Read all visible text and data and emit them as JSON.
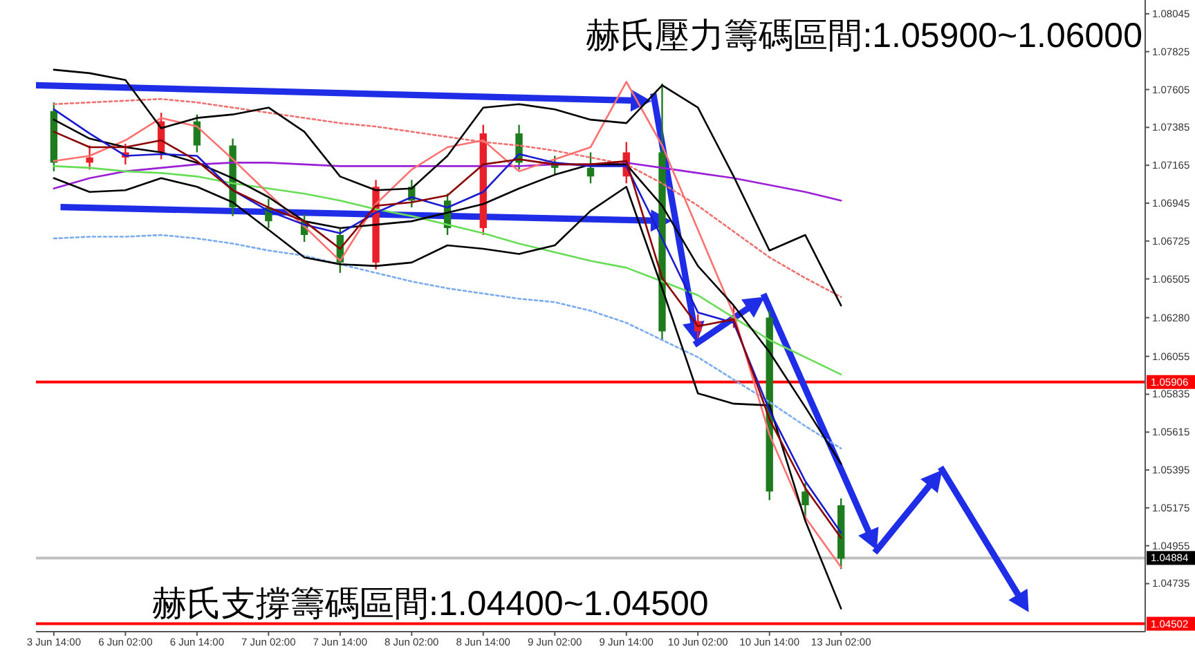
{
  "chart_data": {
    "type": "candlestick",
    "annotations": [
      "赫氏壓力籌碼區間:1.05900~1.06000",
      "赫氏支撐籌碼區間:1.04400~1.04500"
    ],
    "categories": [
      "3 Jun 14:00",
      null,
      "6 Jun 02:00",
      null,
      "6 Jun 14:00",
      null,
      "7 Jun 02:00",
      null,
      "7 Jun 14:00",
      null,
      "8 Jun 02:00",
      null,
      "8 Jun 14:00",
      null,
      "9 Jun 02:00",
      null,
      "9 Jun 14:00",
      null,
      "10 Jun 02:00",
      null,
      "10 Jun 14:00",
      null,
      "13 Jun 02:00",
      null,
      null,
      null,
      null,
      null,
      null,
      null,
      null
    ],
    "ohlc": [
      [
        1.0748,
        1.0753,
        1.0713,
        1.0718
      ],
      [
        1.0718,
        1.0728,
        1.0714,
        1.0721
      ],
      [
        1.0721,
        1.0729,
        1.0717,
        1.0724
      ],
      [
        1.0724,
        1.0747,
        1.072,
        1.0742
      ],
      [
        1.0742,
        1.0746,
        1.0724,
        1.0728
      ],
      [
        1.0728,
        1.0732,
        1.0687,
        1.0692
      ],
      [
        1.0692,
        1.0697,
        1.068,
        1.0684
      ],
      [
        1.0684,
        1.0688,
        1.0672,
        1.0676
      ],
      [
        1.0676,
        1.068,
        1.0654,
        1.066
      ],
      [
        1.066,
        1.0708,
        1.0656,
        1.0704
      ],
      [
        1.0704,
        1.0708,
        1.0692,
        1.0696
      ],
      [
        1.0696,
        1.07,
        1.0676,
        1.068
      ],
      [
        1.068,
        1.074,
        1.0676,
        1.0735
      ],
      [
        1.0735,
        1.074,
        1.0714,
        1.0718
      ],
      [
        1.0718,
        1.0722,
        1.0711,
        1.0715
      ],
      [
        1.0715,
        1.0724,
        1.0706,
        1.071
      ],
      [
        1.071,
        1.073,
        1.0706,
        1.0724
      ],
      [
        1.0724,
        1.0764,
        1.0615,
        1.062
      ],
      [
        1.062,
        1.063,
        1.0616,
        1.0626
      ],
      [
        1.0626,
        1.0635,
        1.0622,
        1.0628
      ],
      [
        1.0628,
        1.0632,
        1.0522,
        1.0527
      ],
      [
        1.0527,
        1.0532,
        1.0512,
        1.0519
      ],
      [
        1.0519,
        1.0523,
        1.0482,
        1.0488
      ],
      null,
      null,
      null,
      null,
      null,
      null,
      null,
      null
    ],
    "colors": [
      "#1e7b1e",
      "#e8202a",
      "#e8202a",
      "#e8202a",
      "#1e7b1e",
      "#1e7b1e",
      "#1e7b1e",
      "#1e7b1e",
      "#1e7b1e",
      "#e8202a",
      "#1e7b1e",
      "#1e7b1e",
      "#e8202a",
      "#1e7b1e",
      "#1e7b1e",
      "#1e7b1e",
      "#e8202a",
      "#1e7b1e",
      "#e8202a",
      "#e8202a",
      "#1e7b1e",
      "#1e7b1e",
      "#1e7b1e",
      null,
      null,
      null,
      null,
      null,
      null,
      null,
      null
    ],
    "series": [
      {
        "type": "line",
        "color": "#9b1fd6",
        "line_style": "solid",
        "values": [
          1.0703,
          1.0709,
          1.0713,
          1.0715,
          1.0717,
          1.0718,
          1.0718,
          1.0717,
          1.0716,
          1.0716,
          1.0716,
          1.0716,
          1.0716,
          1.0716,
          1.0717,
          1.0717,
          1.0718,
          1.0715,
          1.0712,
          1.0709,
          1.0705,
          1.0701,
          1.0696,
          null,
          null,
          null,
          null,
          null,
          null,
          null,
          null
        ]
      },
      {
        "type": "line",
        "color": "#66dd55",
        "line_style": "solid",
        "values": [
          1.0716,
          1.0715,
          1.0713,
          1.0712,
          1.071,
          1.0706,
          1.0703,
          1.07,
          1.0696,
          1.0691,
          1.0687,
          1.0682,
          1.0677,
          1.0671,
          1.0666,
          1.0661,
          1.0657,
          1.0649,
          1.0641,
          1.0628,
          1.0615,
          1.0605,
          1.0595,
          null,
          null,
          null,
          null,
          null,
          null,
          null,
          null
        ]
      },
      {
        "type": "line",
        "color": "#f07070",
        "line_style": "dotted",
        "values": [
          1.0752,
          1.0753,
          1.0754,
          1.0755,
          1.0753,
          1.075,
          1.0747,
          1.0744,
          1.0741,
          1.0739,
          1.0736,
          1.0733,
          1.073,
          1.0728,
          1.0725,
          1.0721,
          1.0717,
          1.0706,
          1.0693,
          1.0678,
          1.0663,
          1.0651,
          1.064,
          null,
          null,
          null,
          null,
          null,
          null,
          null,
          null
        ]
      },
      {
        "type": "line",
        "color": "#7aaaf0",
        "line_style": "dotted",
        "values": [
          1.0674,
          1.0675,
          1.0675,
          1.0676,
          1.0674,
          1.0671,
          1.0667,
          1.0664,
          1.0659,
          1.0654,
          1.0649,
          1.0645,
          1.0642,
          1.0639,
          1.0637,
          1.0632,
          1.0625,
          1.0615,
          1.0605,
          1.0592,
          1.0579,
          1.0565,
          1.0552,
          null,
          null,
          null,
          null,
          null,
          null,
          null,
          null
        ]
      },
      {
        "type": "line",
        "color": "#ff7070",
        "line_style": "solid",
        "values": [
          1.0719,
          1.0722,
          1.0731,
          1.0744,
          1.0739,
          1.072,
          1.07,
          1.0681,
          1.0661,
          1.0694,
          1.0714,
          1.0727,
          1.0731,
          1.0713,
          1.072,
          1.0727,
          1.0765,
          1.0728,
          1.0679,
          1.063,
          1.056,
          1.0512,
          1.0483,
          null,
          null,
          null,
          null,
          null,
          null,
          null,
          null
        ]
      },
      {
        "type": "line",
        "color": "#000000",
        "line_style": "solid",
        "values": [
          1.0772,
          1.077,
          1.0766,
          1.0738,
          1.0744,
          1.0746,
          1.075,
          1.0736,
          1.071,
          1.0702,
          1.0703,
          1.0722,
          1.075,
          1.0752,
          1.0749,
          1.0743,
          1.0741,
          1.0763,
          1.075,
          1.071,
          1.0667,
          1.0676,
          1.0635,
          null,
          null,
          null,
          null,
          null,
          null,
          null,
          null
        ]
      },
      {
        "type": "line",
        "color": "#000000",
        "line_style": "solid",
        "values": [
          1.0709,
          1.0701,
          1.0702,
          1.0709,
          1.0704,
          1.0695,
          1.0679,
          1.0663,
          1.0659,
          1.0658,
          1.066,
          1.067,
          1.0668,
          1.0665,
          1.067,
          1.069,
          1.0704,
          1.0645,
          1.0584,
          1.0578,
          1.0577,
          1.051,
          1.0459,
          null,
          null,
          null,
          null,
          null,
          null,
          null,
          null
        ]
      },
      {
        "type": "line",
        "color": "#000000",
        "line_style": "solid",
        "values": [
          1.0743,
          1.0732,
          1.0727,
          1.0724,
          1.0718,
          1.0709,
          1.0698,
          1.0684,
          1.068,
          1.0682,
          1.0684,
          1.0689,
          1.0694,
          1.0703,
          1.0711,
          1.0717,
          1.0717,
          1.0693,
          1.0658,
          1.0635,
          1.0608,
          1.0576,
          1.0543,
          null,
          null,
          null,
          null,
          null,
          null,
          null,
          null
        ]
      },
      {
        "type": "line",
        "color": "#1a1ad0",
        "line_style": "solid",
        "values": [
          1.0749,
          1.0735,
          1.0722,
          1.0723,
          1.0722,
          1.0702,
          1.069,
          1.0682,
          1.0677,
          1.0689,
          1.0698,
          1.0692,
          1.0701,
          1.0723,
          1.0718,
          1.0716,
          1.0716,
          1.0674,
          1.0631,
          1.0625,
          1.0574,
          1.0533,
          1.0503,
          null,
          null,
          null,
          null,
          null,
          null,
          null,
          null
        ]
      },
      {
        "type": "line",
        "color": "#8b0000",
        "line_style": "solid",
        "values": [
          1.0736,
          1.0727,
          1.0727,
          1.0731,
          1.0719,
          1.0702,
          1.0692,
          1.0684,
          1.0668,
          1.0693,
          1.0695,
          1.0699,
          1.0717,
          1.072,
          1.0717,
          1.0717,
          1.0719,
          1.0651,
          1.0623,
          1.0627,
          1.0569,
          1.0529,
          1.05,
          null,
          null,
          null,
          null,
          null,
          null,
          null,
          null
        ]
      }
    ],
    "ref_lines": [
      {
        "axis": "y",
        "value": 1.05906,
        "label": "1.05906",
        "color": "#ff0000"
      },
      {
        "axis": "y",
        "value": 1.04884,
        "label": "1.04884",
        "color": "#c0c0c0"
      },
      {
        "axis": "y",
        "value": 1.04502,
        "label": "1.04502",
        "color": "#ff0000"
      }
    ],
    "ylim": [
      1.04456,
      1.08125
    ],
    "yticks": [
      {
        "value": 1.08045,
        "label": "1.08045"
      },
      {
        "value": 1.07825,
        "label": "1.07825"
      },
      {
        "value": 1.07605,
        "label": "1.07605"
      },
      {
        "value": 1.07385,
        "label": "1.07385"
      },
      {
        "value": 1.07165,
        "label": "1.07165"
      },
      {
        "value": 1.06945,
        "label": "1.06945"
      },
      {
        "value": 1.06725,
        "label": "1.06725"
      },
      {
        "value": 1.06505,
        "label": "1.06505"
      },
      {
        "value": 1.0628,
        "label": "1.06280"
      },
      {
        "value": 1.06055,
        "label": "1.06055"
      },
      {
        "value": 1.05835,
        "label": "1.05835"
      },
      {
        "value": 1.05615,
        "label": "1.05615"
      },
      {
        "value": 1.05395,
        "label": "1.05395"
      },
      {
        "value": 1.05175,
        "label": "1.05175"
      },
      {
        "value": 1.04955,
        "label": "1.04955"
      },
      {
        "value": 1.04735,
        "label": "1.04735"
      }
    ]
  }
}
